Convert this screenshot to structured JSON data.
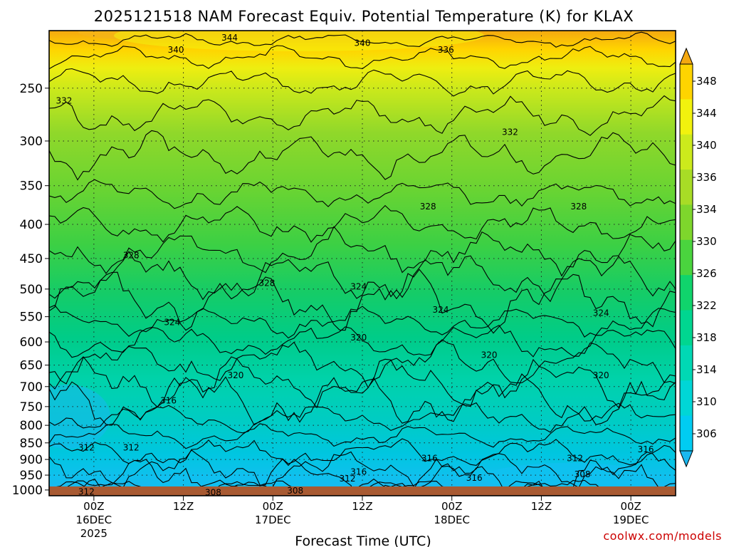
{
  "credit": "coolwx.com/models",
  "chart_data": {
    "type": "heatmap",
    "title": "2025121518 NAM Forecast Equiv. Potential Temperature (K) for KLAX",
    "xlabel": "Forecast Time (UTC)",
    "ylabel": "",
    "y_scale": "log-pressure",
    "ylim": [
      1020,
      205
    ],
    "y_ticks": [
      250,
      300,
      350,
      400,
      450,
      500,
      550,
      600,
      650,
      700,
      750,
      800,
      850,
      900,
      950,
      1000
    ],
    "x_ticks": [
      {
        "hour": 6,
        "label": "00Z",
        "sub1": "16DEC",
        "sub2": "2025"
      },
      {
        "hour": 18,
        "label": "12Z",
        "sub1": "",
        "sub2": ""
      },
      {
        "hour": 30,
        "label": "00Z",
        "sub1": "17DEC",
        "sub2": ""
      },
      {
        "hour": 42,
        "label": "12Z",
        "sub1": "",
        "sub2": ""
      },
      {
        "hour": 54,
        "label": "00Z",
        "sub1": "18DEC",
        "sub2": ""
      },
      {
        "hour": 66,
        "label": "12Z",
        "sub1": "",
        "sub2": ""
      },
      {
        "hour": 78,
        "label": "00Z",
        "sub1": "19DEC",
        "sub2": ""
      }
    ],
    "xlim": [
      0,
      84
    ],
    "grid": true,
    "colorbar": {
      "labels": [
        306,
        310,
        314,
        318,
        322,
        326,
        330,
        334,
        336,
        340,
        344,
        348
      ],
      "colors": [
        "#1ab8f0",
        "#00ccf2",
        "#00d6d6",
        "#00d8b4",
        "#00d690",
        "#10d46c",
        "#4ad43e",
        "#7ed62c",
        "#a8dc26",
        "#ccea1c",
        "#f2f20e",
        "#ffd400",
        "#f4a810"
      ]
    },
    "contour_labels": [
      {
        "value": "344",
        "x": 24.2,
        "p": 210
      },
      {
        "value": "340",
        "x": 17.0,
        "p": 219
      },
      {
        "value": "340",
        "x": 42.0,
        "p": 214
      },
      {
        "value": "336",
        "x": 53.2,
        "p": 219
      },
      {
        "value": "332",
        "x": 2.0,
        "p": 261
      },
      {
        "value": "332",
        "x": 61.8,
        "p": 291
      },
      {
        "value": "328",
        "x": 50.8,
        "p": 376
      },
      {
        "value": "328",
        "x": 71.0,
        "p": 376
      },
      {
        "value": "328",
        "x": 11.0,
        "p": 445
      },
      {
        "value": "328",
        "x": 29.2,
        "p": 490
      },
      {
        "value": "324",
        "x": 41.5,
        "p": 496
      },
      {
        "value": "324",
        "x": 52.5,
        "p": 537
      },
      {
        "value": "324",
        "x": 16.5,
        "p": 561
      },
      {
        "value": "324",
        "x": 74.0,
        "p": 543
      },
      {
        "value": "320",
        "x": 41.5,
        "p": 591
      },
      {
        "value": "320",
        "x": 59.0,
        "p": 628
      },
      {
        "value": "320",
        "x": 25.0,
        "p": 673
      },
      {
        "value": "320",
        "x": 74.0,
        "p": 673
      },
      {
        "value": "316",
        "x": 16.0,
        "p": 735
      },
      {
        "value": "316",
        "x": 80.0,
        "p": 869
      },
      {
        "value": "316",
        "x": 51.0,
        "p": 897
      },
      {
        "value": "316",
        "x": 41.5,
        "p": 939
      },
      {
        "value": "316",
        "x": 57.0,
        "p": 959
      },
      {
        "value": "312",
        "x": 5.0,
        "p": 864
      },
      {
        "value": "312",
        "x": 11.0,
        "p": 864
      },
      {
        "value": "312",
        "x": 70.5,
        "p": 897
      },
      {
        "value": "312",
        "x": 40.0,
        "p": 961
      },
      {
        "value": "312",
        "x": 5.0,
        "p": 1006
      },
      {
        "value": "308",
        "x": 71.5,
        "p": 948
      },
      {
        "value": "308",
        "x": 22.0,
        "p": 1009
      },
      {
        "value": "308",
        "x": 33.0,
        "p": 1003
      }
    ]
  }
}
